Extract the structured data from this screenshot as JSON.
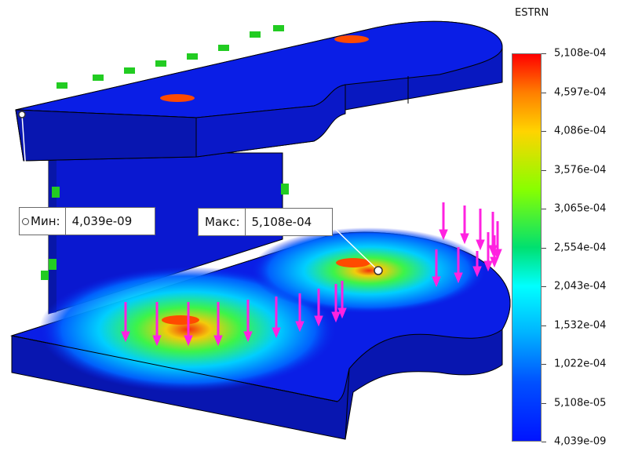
{
  "legend": {
    "title": "ESTRN",
    "ticks": [
      "5,108e-04",
      "4,597e-04",
      "4,086e-04",
      "3,576e-04",
      "3,065e-04",
      "2,554e-04",
      "2,043e-04",
      "1,532e-04",
      "1,022e-04",
      "5,108e-05",
      "4,039e-09"
    ],
    "colors": [
      "#ff0000",
      "#ff7f00",
      "#ffd400",
      "#c8f000",
      "#4cff00",
      "#00e070",
      "#00ffff",
      "#00b4ff",
      "#0064ff",
      "#0014ff"
    ]
  },
  "probes": {
    "min": {
      "label": "Мин:",
      "value": "4,039e-09"
    },
    "max": {
      "label": "Макс:",
      "value": "5,108e-04"
    }
  },
  "model": {
    "body_color": "#0a1ee6",
    "side_color": "#0a14b4",
    "load_arrow_color": "#ff22e0",
    "fixture_color": "#22cc22",
    "hotspot_color": "#ff4a00"
  }
}
